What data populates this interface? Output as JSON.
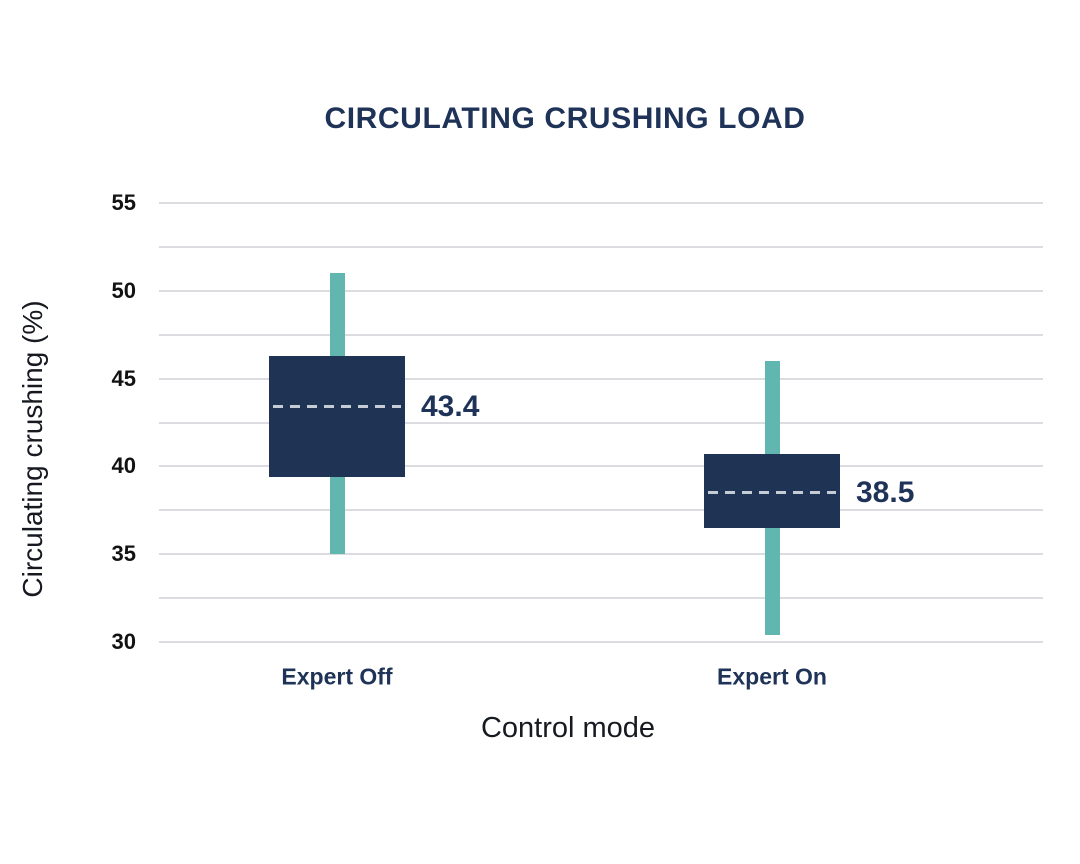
{
  "chart": {
    "title": "CIRCULATING CRUSHING LOAD",
    "y_axis": {
      "title": "Circulating crushing (%)",
      "min": 30,
      "max": 55,
      "grid_step": 2.5,
      "ticks": [
        "55",
        "50",
        "45",
        "40",
        "35",
        "30"
      ],
      "tick_values": [
        55,
        50,
        45,
        40,
        35,
        30
      ]
    },
    "x_axis": {
      "title": "Control mode",
      "categories": [
        "Expert Off",
        "Expert On"
      ]
    },
    "colors": {
      "navy": "#1e3357",
      "box_fill": "#1f3355",
      "teal": "#61b7af",
      "gridline": "#dcdce0",
      "mean_dash": "#c6ccd6",
      "tick_text": "#121212",
      "axis_title_text": "#16191f"
    }
  },
  "chart_data": {
    "type": "box",
    "title": "CIRCULATING CRUSHING LOAD",
    "xlabel": "Control mode",
    "ylabel": "Circulating crushing (%)",
    "ylim": [
      30,
      55
    ],
    "y_tick_step": 5,
    "grid": "horizontal gridlines every 2.5, solid light gray",
    "legend": "none",
    "categories": [
      "Expert Off",
      "Expert On"
    ],
    "series": [
      {
        "category": "Expert Off",
        "whisker_low": 35.0,
        "box_low": 39.4,
        "mean": 43.4,
        "box_high": 46.3,
        "whisker_high": 51.0,
        "mean_label": "43.4"
      },
      {
        "category": "Expert On",
        "whisker_low": 30.4,
        "box_low": 36.5,
        "mean": 38.5,
        "box_high": 40.7,
        "whisker_high": 46.0,
        "mean_label": "38.5"
      }
    ]
  }
}
